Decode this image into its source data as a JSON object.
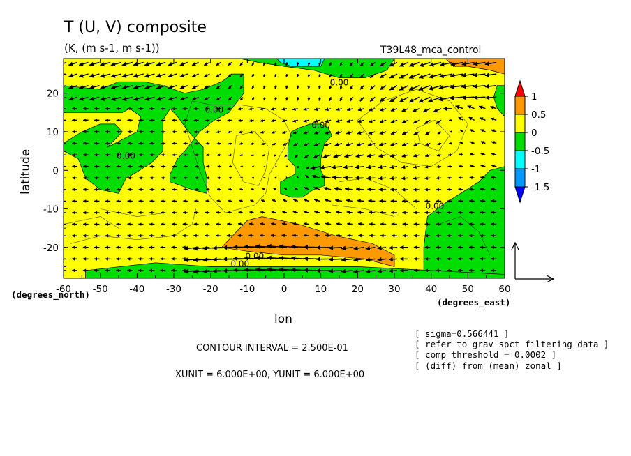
{
  "chart_data": {
    "type": "heatmap",
    "title": "T (U, V) composite",
    "subtitle": "(K, (m s-1, m s-1))",
    "run_label": "T39L48_mca_control",
    "xlabel": "lon",
    "ylabel": "latitude",
    "x_unit_label": "(degrees_east)",
    "y_unit_label": "(degrees_north)",
    "xlim": [
      -60,
      60
    ],
    "ylim": [
      -28,
      29
    ],
    "x_ticks": [
      -60,
      -50,
      -40,
      -30,
      -20,
      -10,
      0,
      10,
      20,
      30,
      40,
      50,
      60
    ],
    "y_ticks": [
      -20,
      -10,
      0,
      10,
      20
    ],
    "colorbar": {
      "levels": [
        "1",
        "0.5",
        "0",
        "-0.5",
        "-1",
        "-1.5"
      ],
      "colors": [
        "#ff0000",
        "#ff9900",
        "#ffff00",
        "#00dd00",
        "#00ffff",
        "#0099ff",
        "#0000ff"
      ]
    },
    "contour_labels": [
      {
        "text": "0.00",
        "lon": -19,
        "lat": 15
      },
      {
        "text": "0.00",
        "lon": -43,
        "lat": 3
      },
      {
        "text": "0.00",
        "lon": 10,
        "lat": 11
      },
      {
        "text": "0.00",
        "lon": 15,
        "lat": 22
      },
      {
        "text": "0.00",
        "lon": 41,
        "lat": -10
      },
      {
        "text": "0.00",
        "lon": -8,
        "lat": -23
      },
      {
        "text": "0.00",
        "lon": -12,
        "lat": -25
      }
    ],
    "regions": {
      "positive_orange": [
        {
          "name": "south-central",
          "polygon": [
            [
              -17,
              -20
            ],
            [
              -10,
              -13
            ],
            [
              -6,
              -12
            ],
            [
              4,
              -14
            ],
            [
              14,
              -17
            ],
            [
              24,
              -19
            ],
            [
              30,
              -22
            ],
            [
              30,
              -25
            ],
            [
              22,
              -23
            ],
            [
              10,
              -22
            ],
            [
              0,
              -22
            ],
            [
              -10,
              -21
            ]
          ]
        },
        {
          "name": "northeast-corner",
          "polygon": [
            [
              44,
              29
            ],
            [
              60,
              29
            ],
            [
              60,
              25
            ],
            [
              56,
              26
            ],
            [
              50,
              27
            ],
            [
              46,
              27
            ]
          ]
        }
      ],
      "negative_green": [
        {
          "name": "northwest",
          "polygon": [
            [
              -60,
              15
            ],
            [
              -60,
              22
            ],
            [
              -50,
              21
            ],
            [
              -45,
              23
            ],
            [
              -38,
              23
            ],
            [
              -33,
              22
            ],
            [
              -27,
              20
            ],
            [
              -22,
              21
            ],
            [
              -17,
              23
            ],
            [
              -14,
              25
            ],
            [
              -11,
              25
            ],
            [
              -11,
              20
            ],
            [
              -15,
              15
            ],
            [
              -19,
              13
            ],
            [
              -23,
              10
            ],
            [
              -27,
              5
            ],
            [
              -29,
              3
            ],
            [
              -31,
              -1
            ],
            [
              -31,
              -3
            ],
            [
              -25,
              -5
            ],
            [
              -21,
              -6
            ],
            [
              -21,
              -2
            ],
            [
              -22,
              2
            ],
            [
              -22,
              6
            ],
            [
              -26,
              10
            ],
            [
              -29,
              14
            ],
            [
              -31,
              16
            ],
            [
              -33,
              13
            ],
            [
              -33,
              5
            ],
            [
              -36,
              2
            ],
            [
              -41,
              -1
            ],
            [
              -43,
              -2
            ],
            [
              -45,
              -6
            ],
            [
              -50,
              -5
            ],
            [
              -54,
              -2
            ],
            [
              -56,
              3
            ],
            [
              -60,
              5
            ],
            [
              -60,
              7
            ],
            [
              -55,
              10
            ],
            [
              -50,
              12
            ],
            [
              -46,
              12
            ],
            [
              -44,
              10
            ],
            [
              -48,
              6
            ],
            [
              -44,
              8
            ],
            [
              -40,
              10
            ],
            [
              -39,
              14
            ],
            [
              -42,
              16
            ],
            [
              -44,
              15
            ],
            [
              -47,
              15
            ],
            [
              -50,
              15
            ],
            [
              -55,
              15
            ]
          ]
        },
        {
          "name": "equatorial-center",
          "polygon": [
            [
              1,
              6
            ],
            [
              2,
              10
            ],
            [
              4,
              11
            ],
            [
              7,
              12
            ],
            [
              10,
              12
            ],
            [
              12,
              11
            ],
            [
              13,
              9
            ],
            [
              11,
              7
            ],
            [
              10,
              3
            ],
            [
              10,
              0
            ],
            [
              11,
              -2
            ],
            [
              11,
              -4
            ],
            [
              8,
              -5
            ],
            [
              5,
              -7
            ],
            [
              2,
              -7
            ],
            [
              -1,
              -6
            ],
            [
              -1,
              -3
            ],
            [
              1,
              -2
            ],
            [
              3,
              -1
            ],
            [
              3,
              1
            ],
            [
              1,
              3
            ]
          ]
        },
        {
          "name": "east-south",
          "polygon": [
            [
              60,
              1
            ],
            [
              60,
              -27
            ],
            [
              38,
              -27
            ],
            [
              38,
              -20
            ],
            [
              39,
              -12
            ],
            [
              43,
              -9
            ],
            [
              48,
              -6
            ],
            [
              53,
              -3
            ],
            [
              56,
              0
            ]
          ]
        },
        {
          "name": "east-north-edge",
          "polygon": [
            [
              58,
              22
            ],
            [
              60,
              22
            ],
            [
              60,
              14
            ],
            [
              58,
              16
            ],
            [
              57,
              19
            ]
          ]
        },
        {
          "name": "south-strip",
          "polygon": [
            [
              -54,
              -26
            ],
            [
              -35,
              -24
            ],
            [
              -20,
              -25
            ],
            [
              0,
              -25
            ],
            [
              20,
              -25
            ],
            [
              40,
              -26
            ],
            [
              60,
              -27
            ],
            [
              60,
              -28
            ],
            [
              -54,
              -28
            ]
          ]
        },
        {
          "name": "north-coast",
          "polygon": [
            [
              -12,
              29
            ],
            [
              30,
              29
            ],
            [
              28,
              26
            ],
            [
              22,
              24
            ],
            [
              15,
              24
            ],
            [
              8,
              26
            ],
            [
              0,
              27
            ],
            [
              -7,
              28
            ]
          ]
        }
      ],
      "negative_cyan": [
        {
          "name": "north-edge",
          "polygon": [
            [
              -2,
              29
            ],
            [
              11,
              29
            ],
            [
              10,
              27
            ],
            [
              6,
              27
            ],
            [
              2,
              27
            ],
            [
              -1,
              28
            ]
          ]
        }
      ]
    },
    "contour_lines": [
      [
        [
          -25,
          18
        ],
        [
          -20,
          17
        ],
        [
          -12,
          17
        ],
        [
          -5,
          16
        ],
        [
          0,
          13
        ],
        [
          2,
          9
        ],
        [
          -1,
          4
        ],
        [
          -4,
          -1
        ],
        [
          -5,
          -6
        ],
        [
          -8,
          -9
        ],
        [
          -16,
          -11
        ],
        [
          -20,
          -7
        ],
        [
          -23,
          0
        ],
        [
          -25,
          6
        ],
        [
          -27,
          12
        ],
        [
          -25,
          18
        ]
      ],
      [
        [
          -13,
          9
        ],
        [
          -8,
          10
        ],
        [
          -4,
          6
        ],
        [
          -5,
          0
        ],
        [
          -7,
          -4
        ],
        [
          -11,
          -3
        ],
        [
          -14,
          2
        ],
        [
          -13,
          9
        ]
      ],
      [
        [
          20,
          13
        ],
        [
          27,
          18
        ],
        [
          36,
          21
        ],
        [
          45,
          18
        ],
        [
          50,
          12
        ],
        [
          47,
          5
        ],
        [
          40,
          1
        ],
        [
          32,
          2
        ],
        [
          25,
          6
        ],
        [
          20,
          13
        ]
      ],
      [
        [
          36,
          11
        ],
        [
          41,
          13
        ],
        [
          45,
          9
        ],
        [
          42,
          5
        ],
        [
          37,
          7
        ],
        [
          36,
          11
        ]
      ],
      [
        [
          -58,
          -19
        ],
        [
          -50,
          -17
        ],
        [
          -40,
          -18
        ],
        [
          -30,
          -17
        ],
        [
          -25,
          -14
        ],
        [
          -24,
          -10
        ]
      ],
      [
        [
          -50,
          -10
        ],
        [
          -40,
          -12
        ],
        [
          -32,
          -11
        ]
      ],
      [
        [
          15,
          -3
        ],
        [
          22,
          -2
        ],
        [
          30,
          -5
        ],
        [
          36,
          -10
        ]
      ],
      [
        [
          13,
          -9
        ],
        [
          22,
          -10
        ],
        [
          30,
          -12
        ]
      ],
      [
        [
          -60,
          -14
        ],
        [
          -50,
          -12
        ],
        [
          -45,
          -15
        ]
      ],
      [
        [
          42,
          -14
        ],
        [
          48,
          -12
        ],
        [
          53,
          -16
        ],
        [
          56,
          -22
        ]
      ]
    ],
    "arrow_scale": {
      "xunit": 6.0,
      "yunit": 6.0
    },
    "vector_field": {
      "lon": [
        -60,
        -57,
        -54,
        -51,
        -48,
        -45,
        -42,
        -39,
        -36,
        -33,
        -30,
        -27,
        -24,
        -21,
        -18,
        -15,
        -12,
        -9,
        -6,
        -3,
        0,
        3,
        6,
        9,
        12,
        15,
        18,
        21,
        24,
        27,
        30,
        33,
        36,
        39,
        42,
        45,
        48,
        51,
        54,
        57
      ],
      "lat": [
        28,
        25,
        22,
        19,
        16,
        13,
        10,
        7,
        4,
        1,
        -2,
        -5,
        -8,
        -11,
        -14,
        -17,
        -20,
        -23,
        -26
      ],
      "convergence_center": {
        "lon": 7,
        "lat": 0
      },
      "cyclonic_center": {
        "lon": 45,
        "lat": 14
      },
      "jet": {
        "lat_min": -27,
        "lat_max": -20,
        "lon_min": -25,
        "lon_max": 35,
        "speed_m_s": 6.0
      }
    },
    "annotations": {
      "contour_interval": "CONTOUR INTERVAL = 2.500E-01",
      "units": "XUNIT = 6.000E+00, YUNIT = 6.000E+00",
      "notes": [
        "[ sigma=0.566441 ]",
        "[ refer to grav spct filtering data ]",
        "[ comp threshold = 0.0002 ]",
        "[ (diff) from (mean) zonal ]"
      ]
    }
  }
}
